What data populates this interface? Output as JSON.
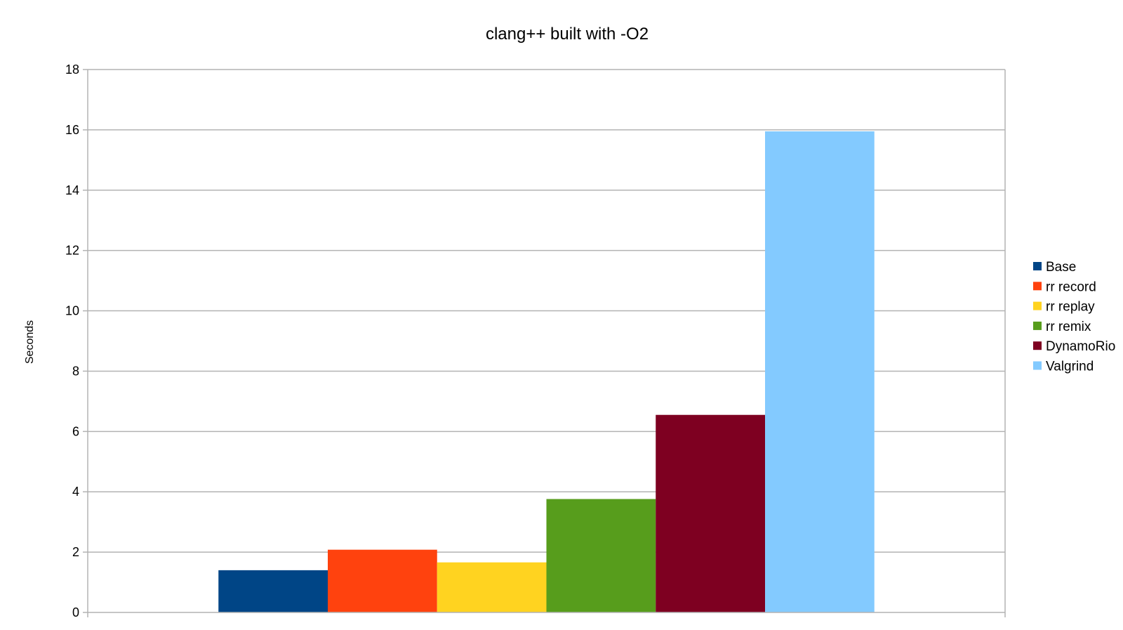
{
  "chart_data": {
    "type": "bar",
    "title": "clang++ built with -O2",
    "xlabel": "",
    "ylabel": "Seconds",
    "ylim": [
      0,
      18
    ],
    "yticks": [
      0,
      2,
      4,
      6,
      8,
      10,
      12,
      14,
      16,
      18
    ],
    "grid": true,
    "legend_position": "right",
    "categories": [
      ""
    ],
    "series": [
      {
        "name": "Base",
        "values": [
          1.4
        ],
        "color": "#004586"
      },
      {
        "name": "rr record",
        "values": [
          2.08
        ],
        "color": "#ff420e"
      },
      {
        "name": "rr replay",
        "values": [
          1.66
        ],
        "color": "#ffd320"
      },
      {
        "name": "rr remix",
        "values": [
          3.76
        ],
        "color": "#579d1c"
      },
      {
        "name": "DynamoRio",
        "values": [
          6.55
        ],
        "color": "#7e0021"
      },
      {
        "name": "Valgrind",
        "values": [
          15.95
        ],
        "color": "#83caff"
      }
    ]
  }
}
